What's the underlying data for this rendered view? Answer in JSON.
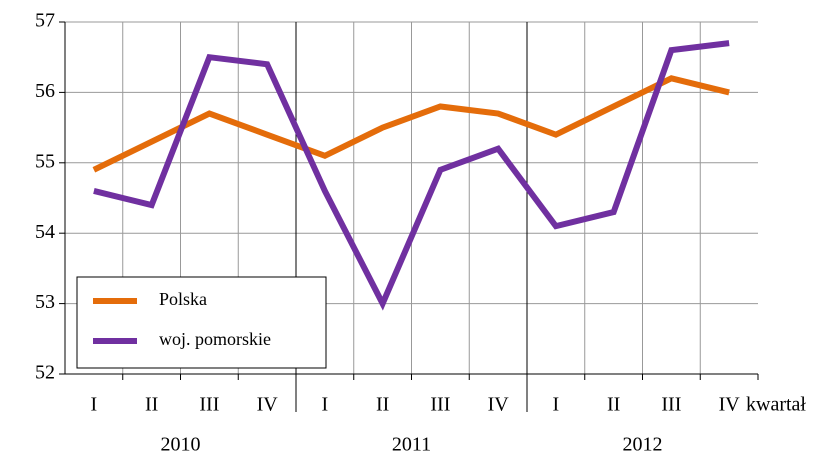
{
  "chart_data": {
    "type": "line",
    "categories": [
      "I",
      "II",
      "III",
      "IV",
      "I",
      "II",
      "III",
      "IV",
      "I",
      "II",
      "III",
      "IV"
    ],
    "group_labels": [
      "2010",
      "2011",
      "2012"
    ],
    "xlabel": "kwartał",
    "series": [
      {
        "name": "Polska",
        "color": "#e46c0a",
        "values": [
          54.9,
          55.3,
          55.7,
          55.4,
          55.1,
          55.5,
          55.8,
          55.7,
          55.4,
          55.8,
          56.2,
          56.0
        ]
      },
      {
        "name": "woj. pomorskie",
        "color": "#7030a0",
        "values": [
          54.6,
          54.4,
          56.5,
          56.4,
          54.6,
          53.0,
          54.9,
          55.2,
          54.1,
          54.3,
          56.6,
          56.7
        ]
      }
    ],
    "ylim": [
      52,
      57
    ],
    "yticks": [
      52,
      53,
      54,
      55,
      56,
      57
    ],
    "grid": true,
    "legend": "lower left"
  }
}
